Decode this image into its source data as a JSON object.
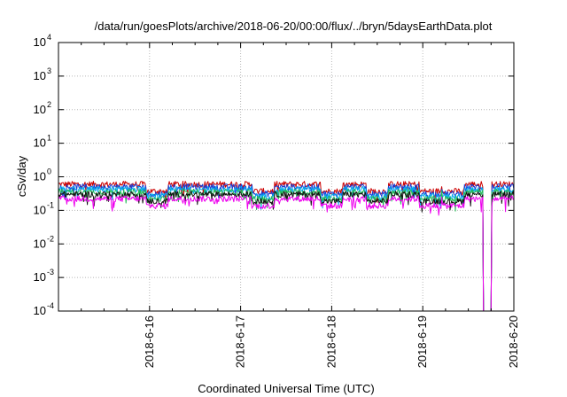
{
  "chart_data": {
    "type": "line",
    "title": "/data/run/goesPlots/archive/2018-06-20/00:00/flux/../bryn/5daysEarthData.plot",
    "xlabel": "Coordinated Universal Time (UTC)",
    "ylabel": "cSv/day",
    "yscale": "log",
    "ylim": [
      0.0001,
      10000
    ],
    "y_ticks": [
      {
        "base": "10",
        "exp": "-4",
        "value": 0.0001
      },
      {
        "base": "10",
        "exp": "-3",
        "value": 0.001
      },
      {
        "base": "10",
        "exp": "-2",
        "value": 0.01
      },
      {
        "base": "10",
        "exp": "-1",
        "value": 0.1
      },
      {
        "base": "10",
        "exp": "0",
        "value": 1
      },
      {
        "base": "10",
        "exp": "1",
        "value": 10
      },
      {
        "base": "10",
        "exp": "2",
        "value": 100
      },
      {
        "base": "10",
        "exp": "3",
        "value": 1000
      },
      {
        "base": "10",
        "exp": "4",
        "value": 10000
      }
    ],
    "xlim": [
      "2018-06-15 00:00",
      "2018-06-20 00:00"
    ],
    "x_ticks": [
      "2018-6-16",
      "2018-6-17",
      "2018-6-18",
      "2018-6-19",
      "2018-6-20"
    ],
    "grid": true,
    "series": [
      {
        "color": "#cc0000",
        "base": 0.6
      },
      {
        "color": "#1a3fd6",
        "base": 0.5
      },
      {
        "color": "#00aaee",
        "base": 0.42
      },
      {
        "color": "#22bb55",
        "base": 0.35
      },
      {
        "color": "#111111",
        "base": 0.3
      },
      {
        "color": "#ee00ee",
        "base": 0.22
      }
    ],
    "data_gap": {
      "start": "2018-06-19 16:00",
      "end": "2018-06-19 18:00",
      "min_value": 0.0001
    },
    "dips": [
      "2018-06-16 02:00",
      "2018-06-17 06:00",
      "2018-06-18 00:00",
      "2018-06-18 12:00",
      "2018-06-19 02:00",
      "2018-06-19 08:00"
    ]
  }
}
